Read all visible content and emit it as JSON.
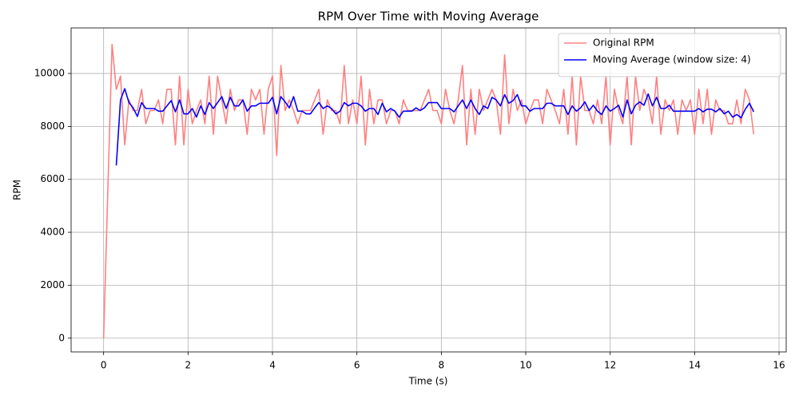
{
  "chart_data": {
    "type": "line",
    "title": "RPM Over Time with Moving Average",
    "x_label": "Time (s)",
    "y_label": "RPM",
    "x": [
      0,
      0.1,
      0.2,
      0.3,
      0.4,
      0.5,
      0.6,
      0.7,
      0.8,
      0.9,
      1,
      1.1,
      1.2,
      1.3,
      1.4,
      1.5,
      1.6,
      1.7,
      1.8,
      1.9,
      2,
      2.1,
      2.2,
      2.3,
      2.4,
      2.5,
      2.6,
      2.7,
      2.8,
      2.9,
      3,
      3.1,
      3.2,
      3.3,
      3.4,
      3.5,
      3.6,
      3.7,
      3.8,
      3.9,
      4,
      4.1,
      4.2,
      4.3,
      4.4,
      4.5,
      4.6,
      4.7,
      4.8,
      4.9,
      5,
      5.1,
      5.2,
      5.3,
      5.4,
      5.5,
      5.6,
      5.7,
      5.8,
      5.9,
      6,
      6.1,
      6.2,
      6.3,
      6.4,
      6.5,
      6.6,
      6.7,
      6.8,
      6.9,
      7,
      7.1,
      7.2,
      7.3,
      7.4,
      7.5,
      7.6,
      7.7,
      7.8,
      7.9,
      8,
      8.1,
      8.2,
      8.3,
      8.4,
      8.5,
      8.6,
      8.7,
      8.8,
      8.9,
      9,
      9.1,
      9.2,
      9.3,
      9.4,
      9.5,
      9.6,
      9.7,
      9.8,
      9.9,
      10,
      10.1,
      10.2,
      10.3,
      10.4,
      10.5,
      10.6,
      10.7,
      10.8,
      10.9,
      11,
      11.1,
      11.2,
      11.3,
      11.4,
      11.5,
      11.6,
      11.7,
      11.8,
      11.9,
      12,
      12.1,
      12.2,
      12.3,
      12.4,
      12.5,
      12.6,
      12.7,
      12.8,
      12.9,
      13,
      13.1,
      13.2,
      13.3,
      13.4,
      13.5,
      13.6,
      13.7,
      13.8,
      13.9,
      14,
      14.1,
      14.2,
      14.3,
      14.4,
      14.5,
      14.6,
      14.7,
      14.8,
      14.9,
      15,
      15.1,
      15.2,
      15.3,
      15.4
    ],
    "series": [
      {
        "name": "Original RPM",
        "color": "#ff8080",
        "values": [
          0,
          5600,
          11100,
          9400,
          9900,
          7300,
          9000,
          8600,
          8600,
          9400,
          8100,
          8600,
          8600,
          9000,
          8100,
          9400,
          9400,
          7300,
          9900,
          7300,
          9400,
          8100,
          8600,
          9000,
          8100,
          9900,
          7700,
          9900,
          9000,
          8100,
          9400,
          8600,
          9000,
          9000,
          7700,
          9400,
          9000,
          9400,
          7700,
          9400,
          9900,
          6900,
          10300,
          8600,
          9000,
          8600,
          8100,
          8600,
          8600,
          8600,
          9000,
          9400,
          7700,
          9000,
          8600,
          8600,
          8100,
          10300,
          8100,
          9000,
          8100,
          9900,
          7300,
          9400,
          8100,
          9000,
          9000,
          8100,
          8600,
          8600,
          8100,
          9000,
          8600,
          8600,
          8600,
          8600,
          9000,
          9400,
          8600,
          8600,
          8100,
          9400,
          8600,
          8100,
          9000,
          10300,
          7300,
          9400,
          7700,
          9400,
          8600,
          9000,
          9400,
          9000,
          7700,
          10700,
          8100,
          9400,
          8600,
          9000,
          8100,
          8600,
          9000,
          9000,
          8100,
          9400,
          9000,
          8600,
          8100,
          9400,
          7700,
          9900,
          7300,
          9900,
          8600,
          8600,
          8100,
          9000,
          8100,
          9900,
          7300,
          9400,
          8600,
          8100,
          9900,
          7300,
          9900,
          8600,
          9400,
          9000,
          8100,
          9900,
          7700,
          9000,
          8600,
          9000,
          7700,
          9000,
          8600,
          9000,
          7700,
          9400,
          8100,
          9400,
          7700,
          9000,
          8600,
          8600,
          8100,
          8100,
          9000,
          8100,
          9400,
          9000,
          7700
        ]
      },
      {
        "name": "Moving Average (window size: 4)",
        "color": "#0000ff",
        "values": [
          null,
          null,
          null,
          6525,
          9000,
          9425,
          8900,
          8700,
          8375,
          8900,
          8675,
          8675,
          8675,
          8575,
          8575,
          8775,
          8975,
          8550,
          9000,
          8475,
          8475,
          8675,
          8350,
          8775,
          8450,
          8900,
          8675,
          8900,
          9125,
          8675,
          9100,
          8775,
          8775,
          9000,
          8575,
          8775,
          8775,
          8875,
          8875,
          8875,
          9100,
          8475,
          9125,
          8925,
          8700,
          9125,
          8575,
          8575,
          8475,
          8475,
          8700,
          8900,
          8675,
          8775,
          8675,
          8475,
          8575,
          8900,
          8775,
          8875,
          8875,
          8775,
          8575,
          8675,
          8675,
          8450,
          8875,
          8550,
          8675,
          8575,
          8350,
          8575,
          8575,
          8575,
          8700,
          8600,
          8700,
          8900,
          8900,
          8900,
          8675,
          8675,
          8675,
          8550,
          8775,
          9000,
          8675,
          9000,
          8675,
          8450,
          8775,
          8675,
          9100,
          9000,
          8775,
          9200,
          8875,
          8975,
          9200,
          8775,
          8775,
          8575,
          8675,
          8675,
          8675,
          8875,
          8875,
          8775,
          8775,
          8775,
          8450,
          8775,
          8575,
          8700,
          8925,
          8600,
          8800,
          8575,
          8450,
          8775,
          8575,
          8675,
          8800,
          8350,
          9000,
          8475,
          8800,
          8925,
          8800,
          9225,
          8775,
          9100,
          8675,
          8675,
          8800,
          8575,
          8575,
          8575,
          8575,
          8575,
          8575,
          8675,
          8550,
          8650,
          8650,
          8550,
          8675,
          8475,
          8575,
          8350,
          8450,
          8325,
          8650,
          8875,
          8550
        ]
      }
    ],
    "xlim": [
      -0.77,
      16.17
    ],
    "ylim": [
      -520,
      11720
    ],
    "xticks": [
      0,
      2,
      4,
      6,
      8,
      10,
      12,
      14,
      16
    ],
    "yticks": [
      0,
      2000,
      4000,
      6000,
      8000,
      10000
    ],
    "grid": true,
    "legend": "upper right"
  }
}
